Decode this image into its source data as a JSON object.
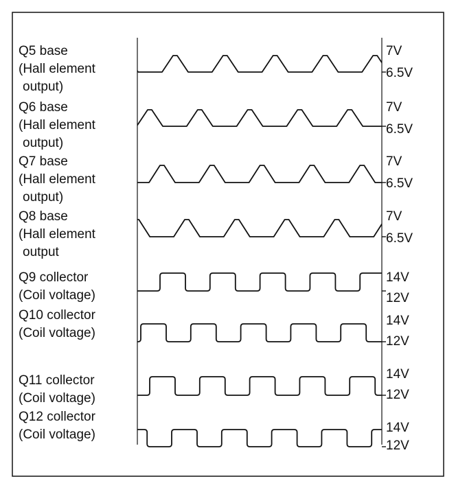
{
  "rows": [
    {
      "label": [
        "Q5 base",
        "(Hall element",
        "output)"
      ],
      "high": "7V",
      "low": "6.5V"
    },
    {
      "label": [
        "Q6 base",
        "(Hall element",
        "output)"
      ],
      "high": "7V",
      "low": "6.5V"
    },
    {
      "label": [
        "Q7 base",
        "(Hall element",
        "output)"
      ],
      "high": "7V",
      "low": "6.5V"
    },
    {
      "label": [
        "Q8 base",
        "(Hall element",
        "output"
      ],
      "high": "7V",
      "low": "6.5V"
    },
    {
      "label": [
        "Q9 collector",
        "(Coil voltage)"
      ],
      "high": "14V",
      "low": "12V"
    },
    {
      "label": [
        "Q10 collector",
        "(Coil voltage)"
      ],
      "high": "14V",
      "low": "12V"
    },
    {
      "label": [
        "Q11 collector",
        "(Coil voltage)"
      ],
      "high": "14V",
      "low": "12V"
    },
    {
      "label": [
        "Q12 collector",
        "(Coil voltage)"
      ],
      "high": "14V",
      "low": "12V"
    }
  ]
}
